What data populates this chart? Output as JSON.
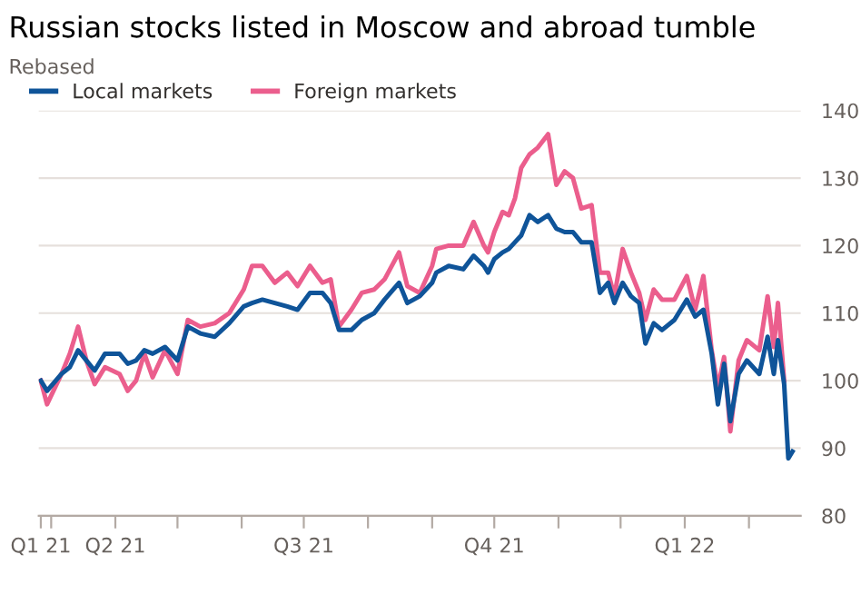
{
  "chart_data": {
    "type": "line",
    "title": "Russian stocks listed in Moscow and abroad tumble",
    "subtitle": "Rebased",
    "x": [
      "2021-02-24",
      "2021-02-27",
      "2021-03-06",
      "2021-03-10",
      "2021-03-14",
      "2021-03-18",
      "2021-03-22",
      "2021-03-27",
      "2021-04-03",
      "2021-04-07",
      "2021-04-11",
      "2021-04-15",
      "2021-04-19",
      "2021-04-25",
      "2021-05-01",
      "2021-05-06",
      "2021-05-12",
      "2021-05-19",
      "2021-05-26",
      "2021-06-02",
      "2021-06-06",
      "2021-06-11",
      "2021-06-17",
      "2021-06-23",
      "2021-06-28",
      "2021-07-04",
      "2021-07-10",
      "2021-07-14",
      "2021-07-18",
      "2021-07-24",
      "2021-07-29",
      "2021-08-04",
      "2021-08-09",
      "2021-08-16",
      "2021-08-20",
      "2021-08-26",
      "2021-09-01",
      "2021-09-03",
      "2021-09-09",
      "2021-09-16",
      "2021-09-21",
      "2021-09-26",
      "2021-09-28",
      "2021-10-01",
      "2021-10-05",
      "2021-10-08",
      "2021-10-11",
      "2021-10-14",
      "2021-10-18",
      "2021-10-22",
      "2021-10-27",
      "2021-10-31",
      "2021-11-04",
      "2021-11-08",
      "2021-11-12",
      "2021-11-17",
      "2021-11-21",
      "2021-11-25",
      "2021-11-28",
      "2021-12-02",
      "2021-12-06",
      "2021-12-10",
      "2021-12-13",
      "2021-12-17",
      "2021-12-21",
      "2021-12-27",
      "2022-01-02",
      "2022-01-06",
      "2022-01-10",
      "2022-01-14",
      "2022-01-17",
      "2022-01-20",
      "2022-01-23",
      "2022-01-27",
      "2022-01-31",
      "2022-02-06",
      "2022-02-10",
      "2022-02-13",
      "2022-02-15",
      "2022-02-18",
      "2022-02-20",
      "2022-02-22"
    ],
    "series": [
      {
        "name": "Local markets",
        "color": "#0f5499",
        "values": [
          100,
          98.5,
          101,
          102,
          104.5,
          103,
          101.5,
          104,
          104,
          102.5,
          103,
          104.5,
          104,
          105,
          103,
          108,
          107,
          106.5,
          108.5,
          111,
          111.5,
          112,
          111.5,
          111,
          110.5,
          113,
          113,
          111.5,
          107.5,
          107.5,
          109,
          110,
          112,
          114.5,
          111.5,
          112.5,
          114.5,
          116,
          117,
          116.5,
          118.5,
          117,
          116,
          118,
          119,
          119.5,
          120.5,
          121.5,
          124.5,
          123.5,
          124.5,
          122.5,
          122,
          122,
          120.5,
          120.5,
          113,
          114.5,
          111.5,
          114.5,
          112.5,
          111.5,
          105.5,
          108.5,
          107.5,
          109,
          112,
          109.5,
          110.5,
          104,
          96.5,
          102.5,
          94,
          101,
          103,
          101,
          106.5,
          101,
          106,
          99.5,
          88.5,
          89.5
        ]
      },
      {
        "name": "Foreign markets",
        "color": "#eb5e8d",
        "values": [
          100,
          96.5,
          101,
          104,
          108,
          103,
          99.5,
          102,
          101,
          98.5,
          100,
          104,
          100.5,
          104.5,
          101,
          109,
          108,
          108.5,
          110,
          113.5,
          117,
          117,
          114.5,
          116,
          114,
          117,
          114.5,
          115,
          108,
          110.5,
          113,
          113.5,
          115,
          119,
          114,
          113,
          117,
          119.5,
          120,
          120,
          123.5,
          120,
          119,
          122,
          125,
          124.5,
          127,
          131.5,
          133.5,
          134.5,
          136.5,
          129,
          131,
          130,
          125.5,
          126,
          116,
          116,
          112.5,
          119.5,
          116,
          113,
          109,
          113.5,
          112,
          112,
          115.5,
          110.5,
          115.5,
          104.5,
          99,
          103.5,
          92.5,
          103,
          106,
          104.5,
          112.5,
          105,
          111.5,
          100,
          null,
          null
        ]
      }
    ],
    "xlim": [
      "2021-02-23",
      "2022-02-26"
    ],
    "xticks": [
      {
        "value": "2021-02-24",
        "label": "Q1 21"
      },
      {
        "value": "2021-03-01",
        "label": null
      },
      {
        "value": "2021-04-01",
        "label": "Q2 21"
      },
      {
        "value": "2021-05-01",
        "label": null
      },
      {
        "value": "2021-06-01",
        "label": null
      },
      {
        "value": "2021-07-01",
        "label": "Q3 21"
      },
      {
        "value": "2021-08-01",
        "label": null
      },
      {
        "value": "2021-09-01",
        "label": null
      },
      {
        "value": "2021-10-01",
        "label": "Q4 21"
      },
      {
        "value": "2021-11-01",
        "label": null
      },
      {
        "value": "2021-12-01",
        "label": null
      },
      {
        "value": "2022-01-01",
        "label": "Q1 22"
      },
      {
        "value": "2022-02-01",
        "label": null
      }
    ],
    "ylim": [
      80,
      140
    ],
    "yticks": [
      80,
      90,
      100,
      110,
      120,
      130,
      140
    ],
    "grid": "y",
    "legend": "top left",
    "line_style": "solid",
    "marker": "none"
  }
}
